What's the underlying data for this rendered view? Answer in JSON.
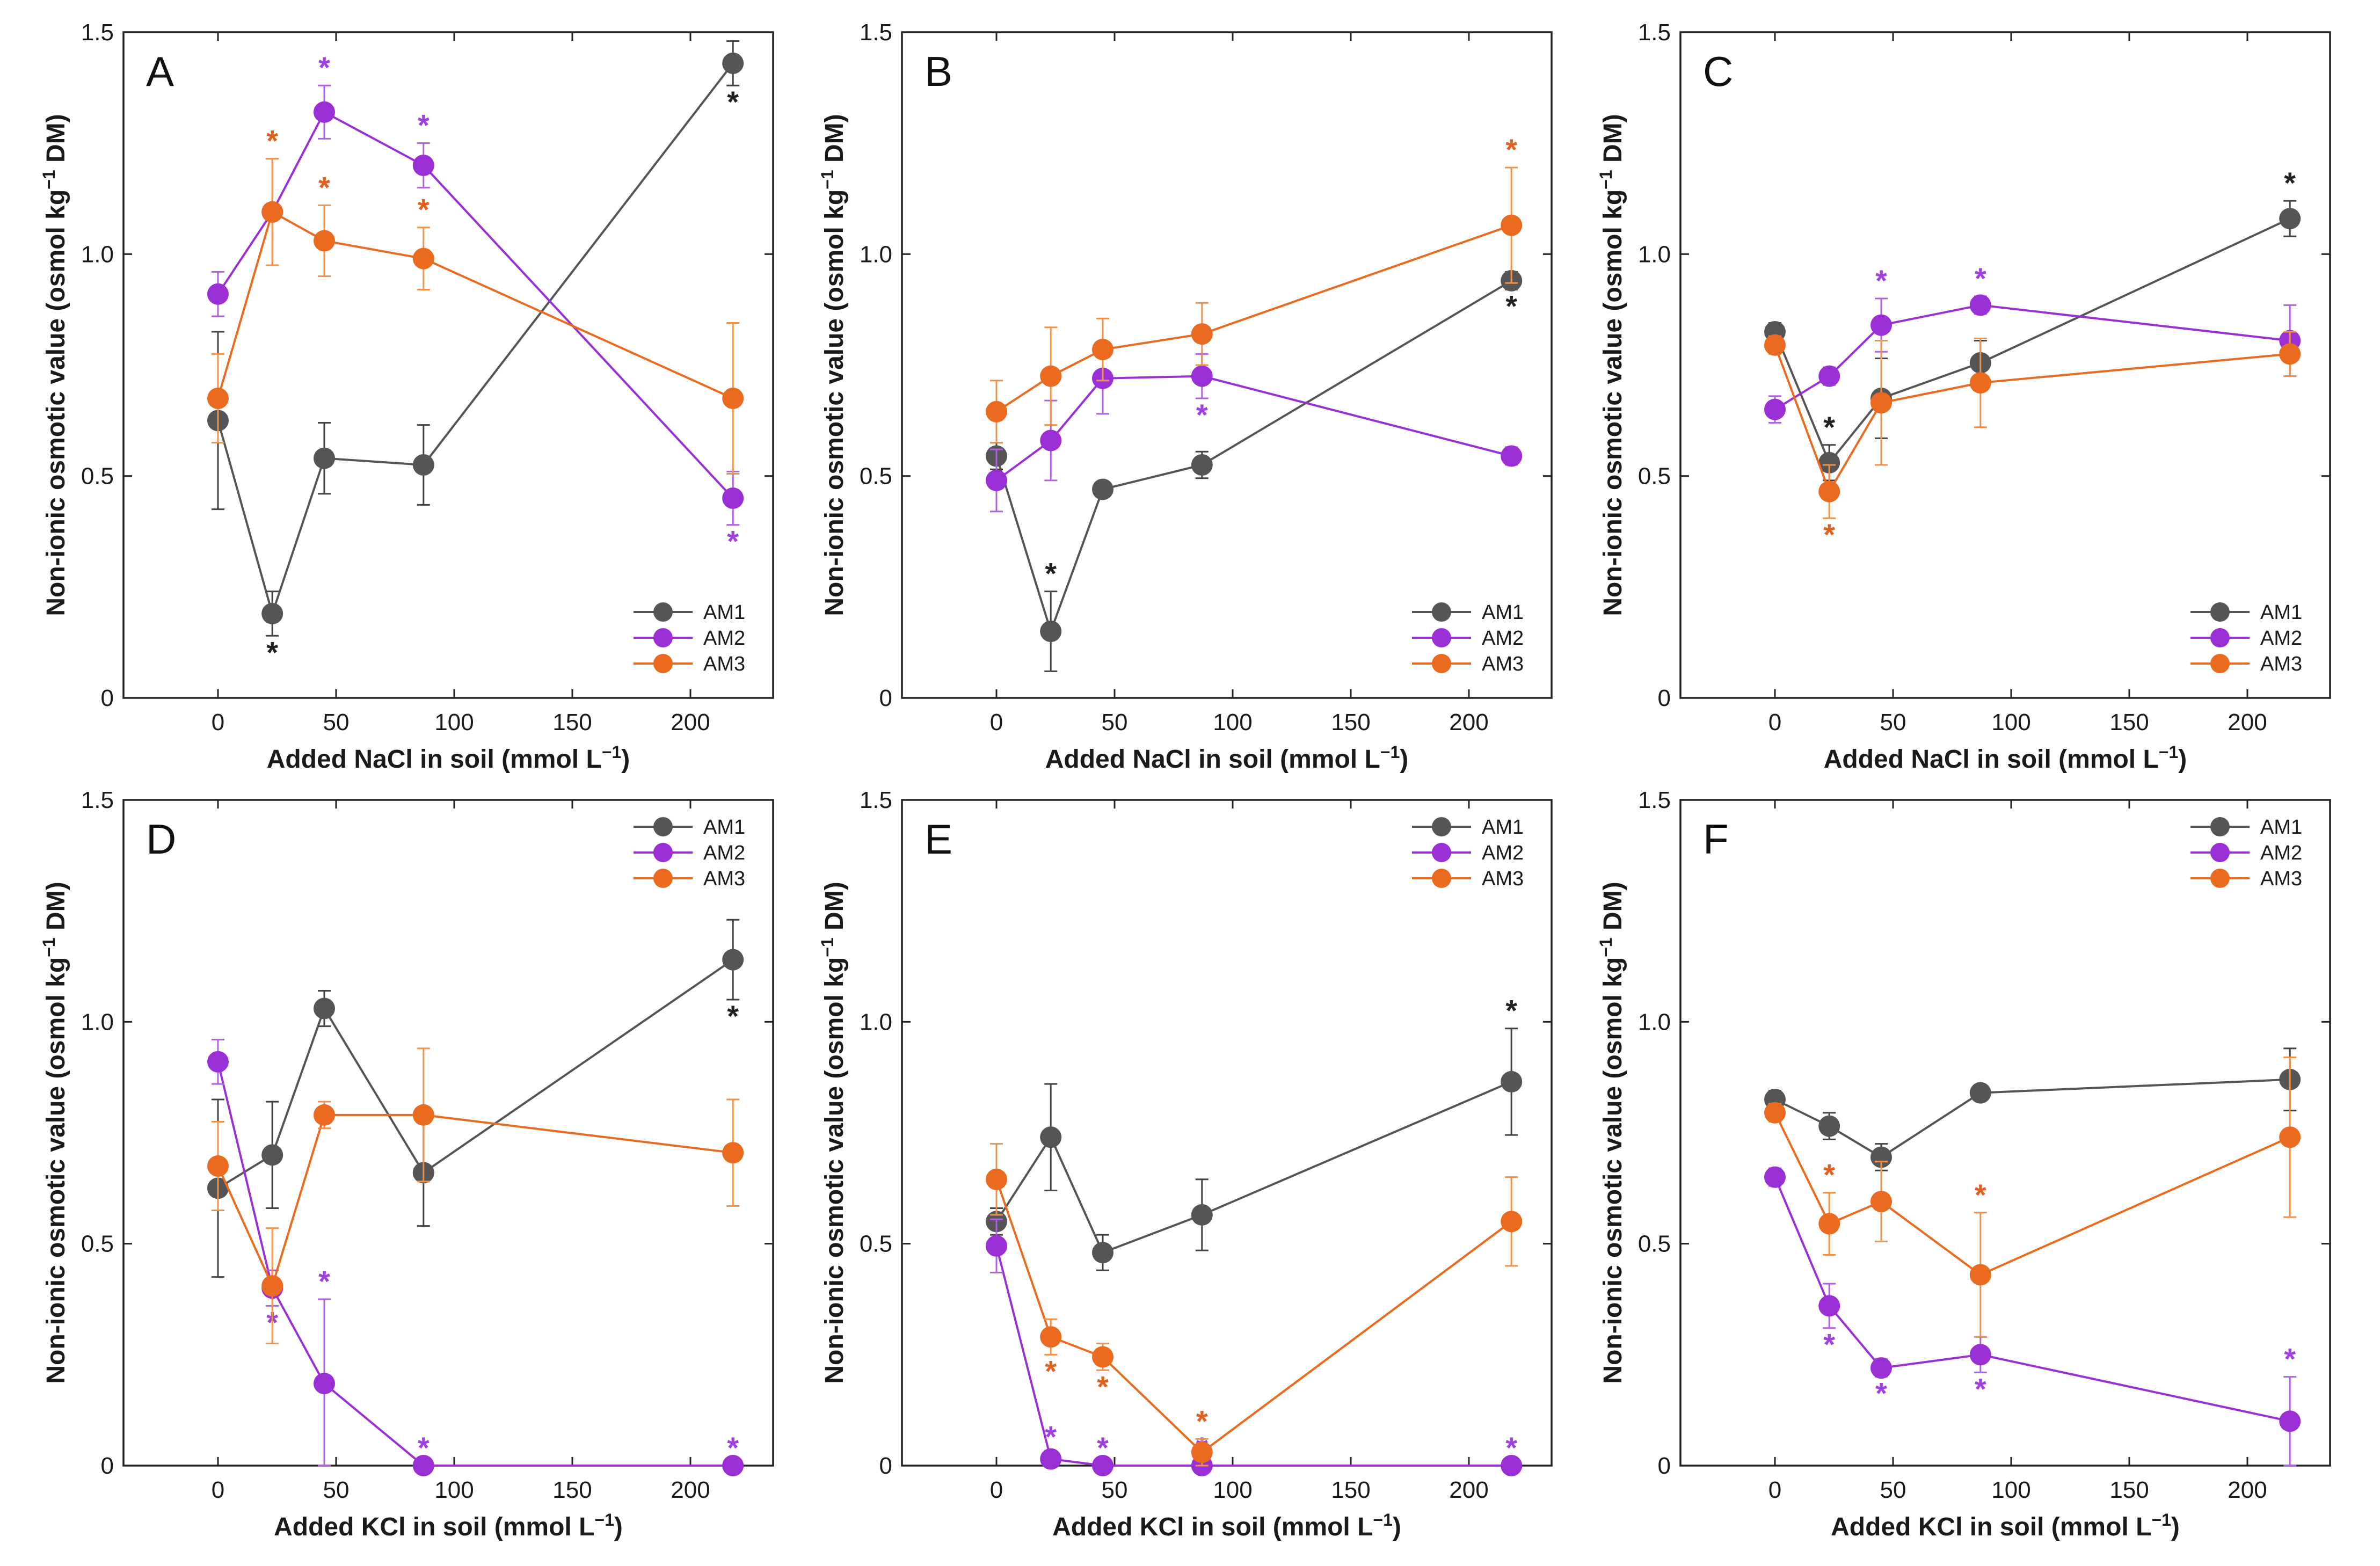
{
  "chart_data": [
    {
      "panel": "A",
      "type": "line",
      "xlabel": "Added NaCl in soil (mmol L−1)",
      "ylabel": "Non-ionic osmotic value (osmol kg−1 DM)",
      "xlim": [
        -40,
        235
      ],
      "ylim": [
        0,
        1.5
      ],
      "xticks": [
        0,
        50,
        100,
        150,
        200
      ],
      "yticks": [
        0,
        0.5,
        1.0,
        1.5
      ],
      "ytick_labels": [
        "0",
        "0.5",
        "1.0",
        "1.5"
      ],
      "legend_position": "bottom-right",
      "x": [
        0,
        23,
        45,
        87,
        218
      ],
      "series": [
        {
          "name": "AM1",
          "values": [
            0.625,
            0.19,
            0.54,
            0.525,
            1.43
          ],
          "errors": [
            0.2,
            0.05,
            0.08,
            0.09,
            0.05
          ],
          "sig": [
            false,
            "below",
            false,
            false,
            "below"
          ]
        },
        {
          "name": "AM2",
          "values": [
            0.91,
            1.095,
            1.32,
            1.2,
            0.45
          ],
          "errors": [
            0.05,
            0.12,
            0.06,
            0.05,
            0.06
          ],
          "sig": [
            false,
            false,
            "above",
            "above",
            "below"
          ]
        },
        {
          "name": "AM3",
          "values": [
            0.675,
            1.095,
            1.03,
            0.99,
            0.675
          ],
          "errors": [
            0.1,
            0.12,
            0.08,
            0.07,
            0.17
          ],
          "sig": [
            false,
            "above",
            "above",
            "above",
            false
          ]
        }
      ]
    },
    {
      "panel": "B",
      "type": "line",
      "xlabel": "Added NaCl in soil (mmol L−1)",
      "ylabel": "Non-ionic osmotic value (osmol kg−1 DM)",
      "xlim": [
        -40,
        235
      ],
      "ylim": [
        0,
        1.5
      ],
      "xticks": [
        0,
        50,
        100,
        150,
        200
      ],
      "yticks": [
        0,
        0.5,
        1.0,
        1.5
      ],
      "ytick_labels": [
        "0",
        "0.5",
        "1.0",
        "1.5"
      ],
      "legend_position": "bottom-right",
      "x": [
        0,
        23,
        45,
        87,
        218
      ],
      "series": [
        {
          "name": "AM1",
          "values": [
            0.545,
            0.15,
            0.47,
            0.525,
            0.94
          ],
          "errors": [
            0.03,
            0.09,
            0.01,
            0.03,
            0.02
          ],
          "sig": [
            false,
            "above",
            false,
            false,
            "below"
          ]
        },
        {
          "name": "AM2",
          "values": [
            0.49,
            0.58,
            0.72,
            0.725,
            0.545
          ],
          "errors": [
            0.07,
            0.09,
            0.08,
            0.05,
            0.02
          ],
          "sig": [
            false,
            false,
            false,
            "below",
            false
          ]
        },
        {
          "name": "AM3",
          "values": [
            0.645,
            0.725,
            0.785,
            0.82,
            1.065
          ],
          "errors": [
            0.07,
            0.11,
            0.07,
            0.07,
            0.13
          ],
          "sig": [
            false,
            false,
            false,
            false,
            "above"
          ]
        }
      ]
    },
    {
      "panel": "C",
      "type": "line",
      "xlabel": "Added NaCl in soil (mmol L−1)",
      "ylabel": "Non-ionic osmotic value (osmol kg−1 DM)",
      "xlim": [
        -40,
        235
      ],
      "ylim": [
        0,
        1.5
      ],
      "xticks": [
        0,
        50,
        100,
        150,
        200
      ],
      "yticks": [
        0,
        0.5,
        1.0,
        1.5
      ],
      "ytick_labels": [
        "0",
        "0.5",
        "1.0",
        "1.5"
      ],
      "legend_position": "bottom-right",
      "x": [
        0,
        23,
        45,
        87,
        218
      ],
      "series": [
        {
          "name": "AM1",
          "values": [
            0.825,
            0.53,
            0.675,
            0.755,
            1.08
          ],
          "errors": [
            0.02,
            0.04,
            0.09,
            0.05,
            0.04
          ],
          "sig": [
            false,
            "above",
            false,
            false,
            "above"
          ]
        },
        {
          "name": "AM2",
          "values": [
            0.65,
            0.725,
            0.84,
            0.885,
            0.805
          ],
          "errors": [
            0.03,
            0.02,
            0.06,
            0.02,
            0.08
          ],
          "sig": [
            false,
            false,
            "above",
            "above",
            false
          ]
        },
        {
          "name": "AM3",
          "values": [
            0.795,
            0.465,
            0.665,
            0.71,
            0.775
          ],
          "errors": [
            0.02,
            0.06,
            0.14,
            0.1,
            0.05
          ],
          "sig": [
            false,
            "below",
            false,
            false,
            false
          ]
        }
      ]
    },
    {
      "panel": "D",
      "type": "line",
      "xlabel": "Added KCl in soil (mmol L−1)",
      "ylabel": "Non-ionic osmotic value (osmol kg−1 DM)",
      "xlim": [
        -40,
        235
      ],
      "ylim": [
        0,
        1.5
      ],
      "xticks": [
        0,
        50,
        100,
        150,
        200
      ],
      "yticks": [
        0,
        0.5,
        1.0,
        1.5
      ],
      "ytick_labels": [
        "0",
        "0.5",
        "1.0",
        "1.5"
      ],
      "legend_position": "top-right",
      "x": [
        0,
        23,
        45,
        87,
        218
      ],
      "series": [
        {
          "name": "AM1",
          "values": [
            0.625,
            0.7,
            1.03,
            0.66,
            1.14
          ],
          "errors": [
            0.2,
            0.12,
            0.04,
            0.12,
            0.09
          ],
          "sig": [
            false,
            false,
            false,
            false,
            "below"
          ]
        },
        {
          "name": "AM2",
          "values": [
            0.91,
            0.4,
            0.185,
            0.0,
            0.0
          ],
          "errors": [
            0.05,
            0.04,
            0.19,
            0.0,
            0.0
          ],
          "sig": [
            false,
            "below",
            "above",
            "above",
            "above"
          ]
        },
        {
          "name": "AM3",
          "values": [
            0.675,
            0.405,
            0.79,
            0.79,
            0.705
          ],
          "errors": [
            0.1,
            0.13,
            0.03,
            0.15,
            0.12
          ],
          "sig": [
            false,
            false,
            false,
            false,
            false
          ]
        }
      ]
    },
    {
      "panel": "E",
      "type": "line",
      "xlabel": "Added KCl in soil (mmol L−1)",
      "ylabel": "Non-ionic osmotic value (osmol kg−1 DM)",
      "xlim": [
        -40,
        235
      ],
      "ylim": [
        0,
        1.5
      ],
      "xticks": [
        0,
        50,
        100,
        150,
        200
      ],
      "yticks": [
        0,
        0.5,
        1.0,
        1.5
      ],
      "ytick_labels": [
        "0",
        "0.5",
        "1.0",
        "1.5"
      ],
      "legend_position": "top-right",
      "x": [
        0,
        23,
        45,
        87,
        218
      ],
      "series": [
        {
          "name": "AM1",
          "values": [
            0.55,
            0.74,
            0.48,
            0.565,
            0.865
          ],
          "errors": [
            0.03,
            0.12,
            0.04,
            0.08,
            0.12
          ],
          "sig": [
            false,
            false,
            false,
            false,
            "above"
          ]
        },
        {
          "name": "AM2",
          "values": [
            0.495,
            0.015,
            0.0,
            0.0,
            0.0
          ],
          "errors": [
            0.06,
            0.01,
            0.0,
            0.0,
            0.0
          ],
          "sig": [
            false,
            "above",
            "above",
            "above",
            "above"
          ]
        },
        {
          "name": "AM3",
          "values": [
            0.645,
            0.29,
            0.245,
            0.03,
            0.55
          ],
          "errors": [
            0.08,
            0.04,
            0.03,
            0.03,
            0.1
          ],
          "sig": [
            false,
            "below",
            "below",
            "above",
            false
          ]
        }
      ]
    },
    {
      "panel": "F",
      "type": "line",
      "xlabel": "Added KCl in soil (mmol L−1)",
      "ylabel": "Non-ionic osmotic value (osmol kg−1 DM)",
      "xlim": [
        -40,
        235
      ],
      "ylim": [
        0,
        1.5
      ],
      "xticks": [
        0,
        50,
        100,
        150,
        200
      ],
      "yticks": [
        0,
        0.5,
        1.0,
        1.5
      ],
      "ytick_labels": [
        "0",
        "0.5",
        "1.0",
        "1.5"
      ],
      "legend_position": "top-right",
      "x": [
        0,
        23,
        45,
        87,
        218
      ],
      "series": [
        {
          "name": "AM1",
          "values": [
            0.825,
            0.765,
            0.695,
            0.84,
            0.87
          ],
          "errors": [
            0.02,
            0.03,
            0.03,
            0.01,
            0.07
          ],
          "sig": [
            false,
            false,
            false,
            false,
            false
          ]
        },
        {
          "name": "AM2",
          "values": [
            0.65,
            0.36,
            0.22,
            0.25,
            0.1
          ],
          "errors": [
            0.02,
            0.05,
            0.02,
            0.04,
            0.1
          ],
          "sig": [
            false,
            "below",
            "below",
            "below",
            "above"
          ]
        },
        {
          "name": "AM3",
          "values": [
            0.795,
            0.545,
            0.595,
            0.43,
            0.74
          ],
          "errors": [
            0.02,
            0.07,
            0.09,
            0.14,
            0.18
          ],
          "sig": [
            false,
            "above",
            false,
            "above",
            false
          ]
        }
      ]
    }
  ],
  "significance_marker": "*",
  "series_colors": {
    "AM1": "#555555",
    "AM2": "#9b2fd6",
    "AM3": "#ea6b1f"
  },
  "errorbar_colors": {
    "AM1": "#444444",
    "AM2": "#b060e0",
    "AM3": "#f0914a"
  },
  "star_colors": {
    "AM1": "#222222",
    "AM2": "#a040e0",
    "AM3": "#e06020"
  }
}
